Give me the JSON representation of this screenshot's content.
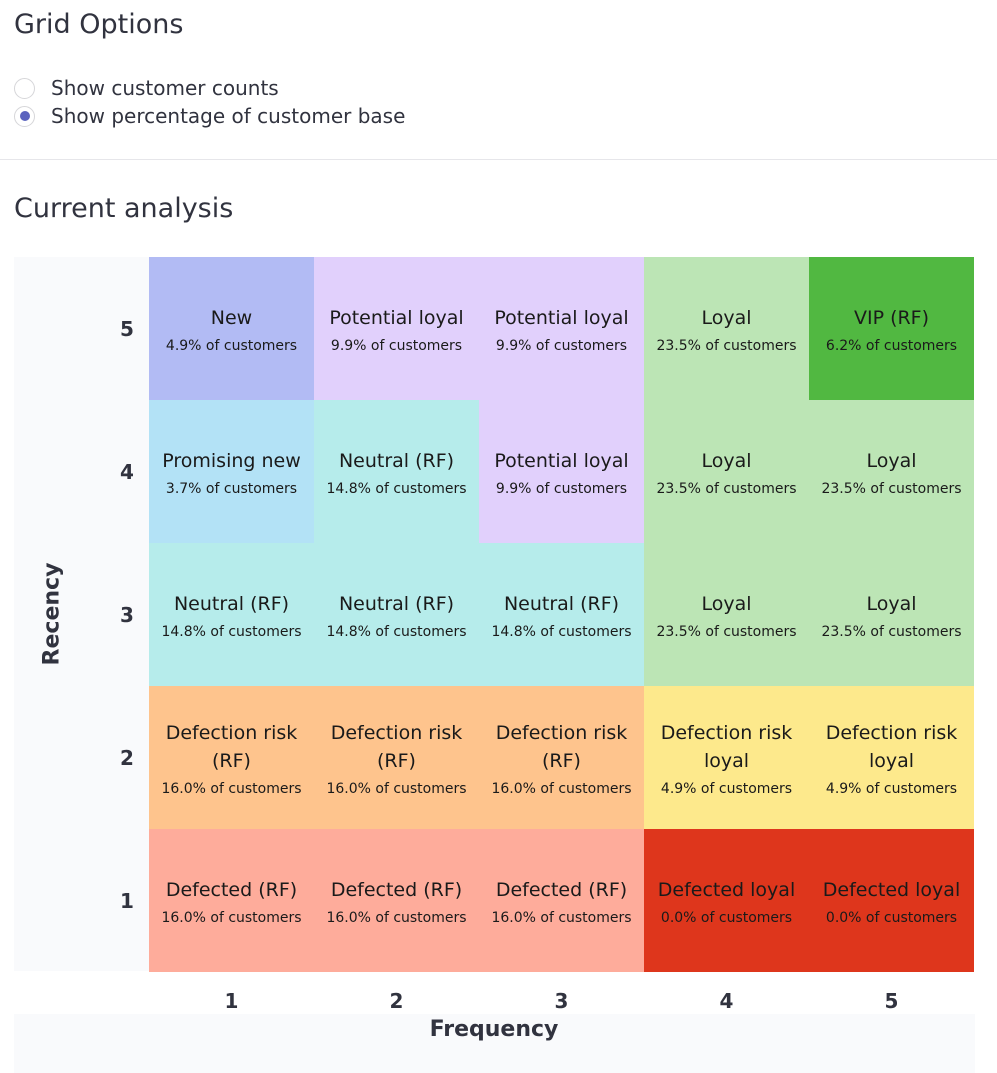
{
  "options": {
    "title": "Grid Options",
    "radios": [
      {
        "label": "Show customer counts",
        "checked": false
      },
      {
        "label": "Show percentage of customer base",
        "checked": true
      }
    ]
  },
  "analysis": {
    "title": "Current analysis",
    "x_axis_title": "Frequency",
    "y_axis_title": "Recency",
    "x_ticks": [
      "1",
      "2",
      "3",
      "4",
      "5"
    ],
    "y_ticks": [
      "5",
      "4",
      "3",
      "2",
      "1"
    ],
    "rows": [
      [
        {
          "name": "New",
          "pct": "4.9% of customers",
          "color": "#b2bbf4"
        },
        {
          "name": "Potential loyal",
          "pct": "9.9% of customers",
          "color": "#e1d0fc"
        },
        {
          "name": "Potential loyal",
          "pct": "9.9% of customers",
          "color": "#e1d0fc"
        },
        {
          "name": "Loyal",
          "pct": "23.5% of customers",
          "color": "#bce5b5"
        },
        {
          "name": "VIP (RF)",
          "pct": "6.2% of customers",
          "color": "#51b841"
        }
      ],
      [
        {
          "name": "Promising new",
          "pct": "3.7% of customers",
          "color": "#b3e2f6"
        },
        {
          "name": "Neutral (RF)",
          "pct": "14.8% of customers",
          "color": "#b6eceb"
        },
        {
          "name": "Potential loyal",
          "pct": "9.9% of customers",
          "color": "#e1d0fc"
        },
        {
          "name": "Loyal",
          "pct": "23.5% of customers",
          "color": "#bce5b5"
        },
        {
          "name": "Loyal",
          "pct": "23.5% of customers",
          "color": "#bce5b5"
        }
      ],
      [
        {
          "name": "Neutral (RF)",
          "pct": "14.8% of customers",
          "color": "#b6eceb"
        },
        {
          "name": "Neutral (RF)",
          "pct": "14.8% of customers",
          "color": "#b6eceb"
        },
        {
          "name": "Neutral (RF)",
          "pct": "14.8% of customers",
          "color": "#b6eceb"
        },
        {
          "name": "Loyal",
          "pct": "23.5% of customers",
          "color": "#bce5b5"
        },
        {
          "name": "Loyal",
          "pct": "23.5% of customers",
          "color": "#bce5b5"
        }
      ],
      [
        {
          "name": "Defection risk (RF)",
          "pct": "16.0% of customers",
          "color": "#fec48d"
        },
        {
          "name": "Defection risk (RF)",
          "pct": "16.0% of customers",
          "color": "#fec48d"
        },
        {
          "name": "Defection risk (RF)",
          "pct": "16.0% of customers",
          "color": "#fec48d"
        },
        {
          "name": "Defection risk loyal",
          "pct": "4.9% of customers",
          "color": "#fde98c"
        },
        {
          "name": "Defection risk loyal",
          "pct": "4.9% of customers",
          "color": "#fde98c"
        }
      ],
      [
        {
          "name": "Defected (RF)",
          "pct": "16.0% of customers",
          "color": "#feac9b"
        },
        {
          "name": "Defected (RF)",
          "pct": "16.0% of customers",
          "color": "#feac9b"
        },
        {
          "name": "Defected (RF)",
          "pct": "16.0% of customers",
          "color": "#feac9b"
        },
        {
          "name": "Defected loyal",
          "pct": "0.0% of customers",
          "color": "#de361c"
        },
        {
          "name": "Defected loyal",
          "pct": "0.0% of customers",
          "color": "#de361c"
        }
      ]
    ]
  }
}
